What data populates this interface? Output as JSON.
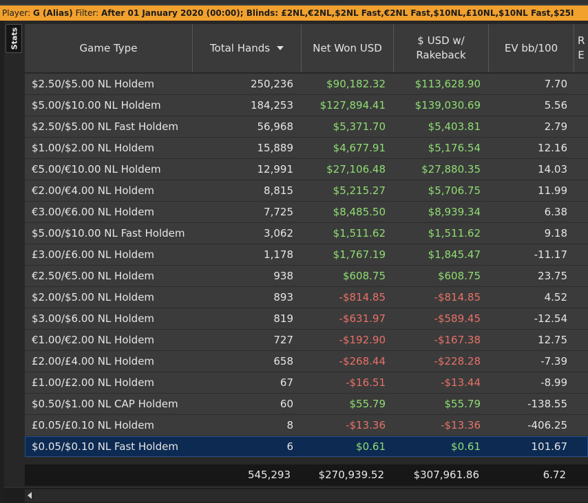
{
  "filter_bar": {
    "player_label": "Player:",
    "player_value": "G (Alias)",
    "filter_label": "Filter:",
    "filter_value": "After 01 January 2020 (00:00); Blinds: £2NL,€2NL,$2NL Fast,€2NL Fast,$10NL,£10NL,$10NL Fast,$25I"
  },
  "side_tab": {
    "label": "Stats"
  },
  "columns": [
    {
      "key": "game_type",
      "label": "Game Type"
    },
    {
      "key": "total_hands",
      "label": "Total Hands",
      "sorted": "descending"
    },
    {
      "key": "net_won_usd",
      "label": "Net Won USD"
    },
    {
      "key": "usd_rakeback",
      "label": "$ USD w/ Rakeback"
    },
    {
      "key": "ev_bb_100",
      "label": "EV bb/100"
    },
    {
      "key": "cut_off",
      "label": "R E"
    }
  ],
  "rows": [
    {
      "game_type": "$2.50/$5.00 NL Holdem",
      "total_hands": "250,236",
      "net_won": "$90,182.32",
      "rakeback": "$113,628.90",
      "ev": "7.70"
    },
    {
      "game_type": "$5.00/$10.00 NL Holdem",
      "total_hands": "184,253",
      "net_won": "$127,894.41",
      "rakeback": "$139,030.69",
      "ev": "5.56"
    },
    {
      "game_type": "$2.50/$5.00 NL Fast Holdem",
      "total_hands": "56,968",
      "net_won": "$5,371.70",
      "rakeback": "$5,403.81",
      "ev": "2.79"
    },
    {
      "game_type": "$1.00/$2.00 NL Holdem",
      "total_hands": "15,889",
      "net_won": "$4,677.91",
      "rakeback": "$5,176.54",
      "ev": "12.16"
    },
    {
      "game_type": "€5.00/€10.00 NL Holdem",
      "total_hands": "12,991",
      "net_won": "$27,106.48",
      "rakeback": "$27,880.35",
      "ev": "14.03"
    },
    {
      "game_type": "€2.00/€4.00 NL Holdem",
      "total_hands": "8,815",
      "net_won": "$5,215.27",
      "rakeback": "$5,706.75",
      "ev": "11.99"
    },
    {
      "game_type": "€3.00/€6.00 NL Holdem",
      "total_hands": "7,725",
      "net_won": "$8,485.50",
      "rakeback": "$8,939.34",
      "ev": "6.38"
    },
    {
      "game_type": "$5.00/$10.00 NL Fast Holdem",
      "total_hands": "3,062",
      "net_won": "$1,511.62",
      "rakeback": "$1,511.62",
      "ev": "9.18"
    },
    {
      "game_type": "£3.00/£6.00 NL Holdem",
      "total_hands": "1,178",
      "net_won": "$1,767.19",
      "rakeback": "$1,845.47",
      "ev": "-11.17"
    },
    {
      "game_type": "€2.50/€5.00 NL Holdem",
      "total_hands": "938",
      "net_won": "$608.75",
      "rakeback": "$608.75",
      "ev": "23.75"
    },
    {
      "game_type": "$2.00/$5.00 NL Holdem",
      "total_hands": "893",
      "net_won": "-$814.85",
      "rakeback": "-$814.85",
      "ev": "4.52"
    },
    {
      "game_type": "$3.00/$6.00 NL Holdem",
      "total_hands": "819",
      "net_won": "-$631.97",
      "rakeback": "-$589.45",
      "ev": "-12.54"
    },
    {
      "game_type": "€1.00/€2.00 NL Holdem",
      "total_hands": "727",
      "net_won": "-$192.90",
      "rakeback": "-$167.38",
      "ev": "12.75"
    },
    {
      "game_type": "£2.00/£4.00 NL Holdem",
      "total_hands": "658",
      "net_won": "-$268.44",
      "rakeback": "-$228.28",
      "ev": "-7.39"
    },
    {
      "game_type": "£1.00/£2.00 NL Holdem",
      "total_hands": "67",
      "net_won": "-$16.51",
      "rakeback": "-$13.44",
      "ev": "-8.99"
    },
    {
      "game_type": "$0.50/$1.00 NL CAP Holdem",
      "total_hands": "60",
      "net_won": "$55.79",
      "rakeback": "$55.79",
      "ev": "-138.55"
    },
    {
      "game_type": "£0.05/£0.10 NL Holdem",
      "total_hands": "8",
      "net_won": "-$13.36",
      "rakeback": "-$13.36",
      "ev": "-406.25"
    },
    {
      "game_type": "$0.05/$0.10 NL Fast Holdem",
      "total_hands": "6",
      "net_won": "$0.61",
      "rakeback": "$0.61",
      "ev": "101.67",
      "selected": true
    }
  ],
  "totals": {
    "total_hands": "545,293",
    "net_won": "$270,939.52",
    "rakeback": "$307,961.86",
    "ev": "6.72"
  },
  "colors": {
    "filter_bar": "#f2a12e",
    "positive": "#8fdd73",
    "negative": "#e87168",
    "selected_row": "#0c2a52"
  }
}
